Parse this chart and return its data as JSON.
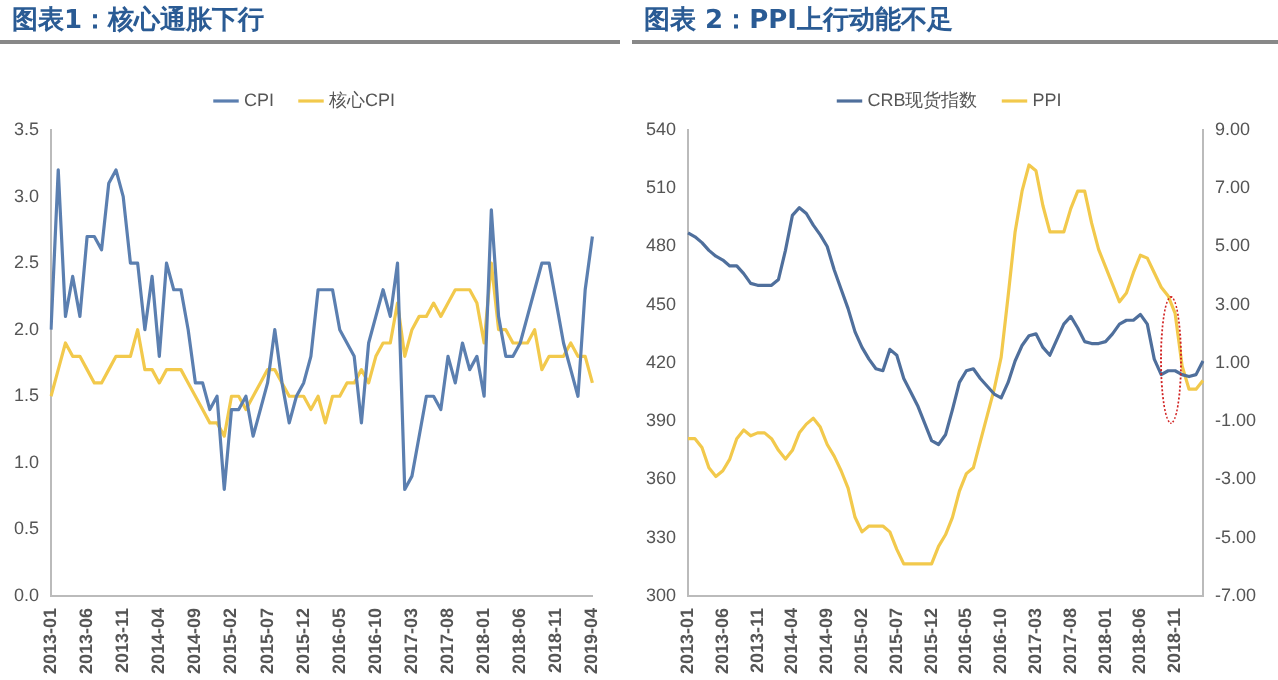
{
  "chart_data": [
    {
      "type": "line",
      "title": "图表1：核心通胀下行",
      "categories": [
        "2013-01",
        null,
        null,
        null,
        null,
        "2013-06",
        null,
        null,
        null,
        null,
        "2013-11",
        null,
        null,
        null,
        null,
        "2014-04",
        null,
        null,
        null,
        null,
        "2014-09",
        null,
        null,
        null,
        null,
        "2015-02",
        null,
        null,
        null,
        null,
        "2015-07",
        null,
        null,
        null,
        null,
        "2015-12",
        null,
        null,
        null,
        null,
        "2016-05",
        null,
        null,
        null,
        null,
        "2016-10",
        null,
        null,
        null,
        null,
        "2017-03",
        null,
        null,
        null,
        null,
        "2017-08",
        null,
        null,
        null,
        null,
        "2018-01",
        null,
        null,
        null,
        null,
        "2018-06",
        null,
        null,
        null,
        null,
        "2018-11",
        null,
        null,
        null,
        null,
        "2019-04"
      ],
      "series": [
        {
          "name": "CPI",
          "color": "#5b7fb0",
          "values": [
            2.0,
            3.2,
            2.1,
            2.4,
            2.1,
            2.7,
            2.7,
            2.6,
            3.1,
            3.2,
            3.0,
            2.5,
            2.5,
            2.0,
            2.4,
            1.8,
            2.5,
            2.3,
            2.3,
            2.0,
            1.6,
            1.6,
            1.4,
            1.5,
            0.8,
            1.4,
            1.4,
            1.5,
            1.2,
            1.4,
            1.6,
            2.0,
            1.6,
            1.3,
            1.5,
            1.6,
            1.8,
            2.3,
            2.3,
            2.3,
            2.0,
            1.9,
            1.8,
            1.3,
            1.9,
            2.1,
            2.3,
            2.1,
            2.5,
            0.8,
            0.9,
            1.2,
            1.5,
            1.5,
            1.4,
            1.8,
            1.6,
            1.9,
            1.7,
            1.8,
            1.5,
            2.9,
            2.1,
            1.8,
            1.8,
            1.9,
            2.1,
            2.3,
            2.5,
            2.5,
            2.2,
            1.9,
            1.7,
            1.5,
            2.3,
            2.7
          ]
        },
        {
          "name": "核心CPI",
          "color": "#f2c94c",
          "values": [
            1.5,
            1.7,
            1.9,
            1.8,
            1.8,
            1.7,
            1.6,
            1.6,
            1.7,
            1.8,
            1.8,
            1.8,
            2.0,
            1.7,
            1.7,
            1.6,
            1.7,
            1.7,
            1.7,
            1.6,
            1.5,
            1.4,
            1.3,
            1.3,
            1.2,
            1.5,
            1.5,
            1.4,
            1.5,
            1.6,
            1.7,
            1.7,
            1.6,
            1.5,
            1.5,
            1.5,
            1.4,
            1.5,
            1.3,
            1.5,
            1.5,
            1.6,
            1.6,
            1.7,
            1.6,
            1.8,
            1.9,
            1.9,
            2.2,
            1.8,
            2.0,
            2.1,
            2.1,
            2.2,
            2.1,
            2.2,
            2.3,
            2.3,
            2.3,
            2.2,
            1.9,
            2.5,
            2.0,
            2.0,
            1.9,
            1.9,
            1.9,
            2.0,
            1.7,
            1.8,
            1.8,
            1.8,
            1.9,
            1.8,
            1.8,
            1.6
          ]
        }
      ],
      "ylim": [
        0,
        3.5
      ],
      "yticks": [
        {
          "value": 0,
          "label": "0.0"
        },
        0.5,
        {
          "value": 1,
          "label": "1.0"
        },
        1.5,
        {
          "value": 2,
          "label": "2.0"
        },
        2.5,
        {
          "value": 3,
          "label": "3.0"
        },
        3.5
      ],
      "grid": false,
      "legend": "top",
      "marker": "none",
      "line_style": "solid"
    },
    {
      "type": "line",
      "title": "图表 2：PPI上行动能不足",
      "categories": [
        "2013-01",
        null,
        null,
        null,
        null,
        "2013-06",
        null,
        null,
        null,
        null,
        "2013-11",
        null,
        null,
        null,
        null,
        "2014-04",
        null,
        null,
        null,
        null,
        "2014-09",
        null,
        null,
        null,
        null,
        "2015-02",
        null,
        null,
        null,
        null,
        "2015-07",
        null,
        null,
        null,
        null,
        "2015-12",
        null,
        null,
        null,
        null,
        "2016-05",
        null,
        null,
        null,
        null,
        "2016-10",
        null,
        null,
        null,
        null,
        "2017-03",
        null,
        null,
        null,
        null,
        "2017-08",
        null,
        null,
        null,
        null,
        "2018-01",
        null,
        null,
        null,
        null,
        "2018-06",
        null,
        null,
        null,
        null,
        "2018-11",
        null,
        null,
        null,
        null
      ],
      "series": [
        {
          "name": "CRB现货指数",
          "color": "#4f6f9c",
          "values": [
            487,
            485,
            482,
            478,
            475,
            473,
            470,
            470,
            466,
            461,
            460,
            460,
            460,
            463,
            478,
            496,
            500,
            497,
            491,
            486,
            480,
            468,
            458,
            448,
            436,
            428,
            422,
            417,
            416,
            427,
            424,
            412,
            405,
            398,
            389,
            380,
            378,
            383,
            396,
            410,
            416,
            417,
            412,
            408,
            404,
            402,
            410,
            421,
            429,
            434,
            435,
            428,
            424,
            432,
            440,
            444,
            438,
            431,
            430,
            430,
            431,
            435,
            440,
            442,
            442,
            445,
            440,
            422,
            414,
            416,
            416,
            414,
            413,
            414,
            421
          ]
        },
        {
          "name": "PPI",
          "color": "#f2c94c",
          "axis": "y2",
          "values": [
            -1.6,
            -1.6,
            -1.9,
            -2.6,
            -2.9,
            -2.7,
            -2.3,
            -1.6,
            -1.3,
            -1.5,
            -1.4,
            -1.4,
            -1.6,
            -2.0,
            -2.3,
            -2.0,
            -1.4,
            -1.1,
            -0.9,
            -1.2,
            -1.8,
            -2.2,
            -2.7,
            -3.3,
            -4.3,
            -4.8,
            -4.6,
            -4.6,
            -4.6,
            -4.8,
            -5.4,
            -5.9,
            -5.9,
            -5.9,
            -5.9,
            -5.9,
            -5.3,
            -4.9,
            -4.3,
            -3.4,
            -2.8,
            -2.6,
            -1.7,
            -0.8,
            0.1,
            1.2,
            3.3,
            5.5,
            6.9,
            7.8,
            7.6,
            6.4,
            5.5,
            5.5,
            5.5,
            6.3,
            6.9,
            6.9,
            5.8,
            4.9,
            4.3,
            3.7,
            3.1,
            3.4,
            4.1,
            4.7,
            4.6,
            4.1,
            3.6,
            3.3,
            2.7,
            0.9,
            0.1,
            0.1,
            0.4
          ]
        }
      ],
      "ylim": [
        300,
        540
      ],
      "yticks": [
        300,
        330,
        360,
        390,
        420,
        450,
        480,
        510,
        540
      ],
      "y2lim": [
        -7,
        9
      ],
      "y2ticks": [
        {
          "value": -7,
          "label": "-7.00"
        },
        {
          "value": -5,
          "label": "-5.00"
        },
        {
          "value": -3,
          "label": "-3.00"
        },
        {
          "value": -1,
          "label": "-1.00"
        },
        {
          "value": 1,
          "label": "1.00"
        },
        {
          "value": 3,
          "label": "3.00"
        },
        {
          "value": 5,
          "label": "5.00"
        },
        {
          "value": 7,
          "label": "7.00"
        },
        {
          "value": 9,
          "label": "9.00"
        }
      ],
      "grid": false,
      "legend": "top",
      "marker": "none",
      "line_style": "solid"
    }
  ]
}
